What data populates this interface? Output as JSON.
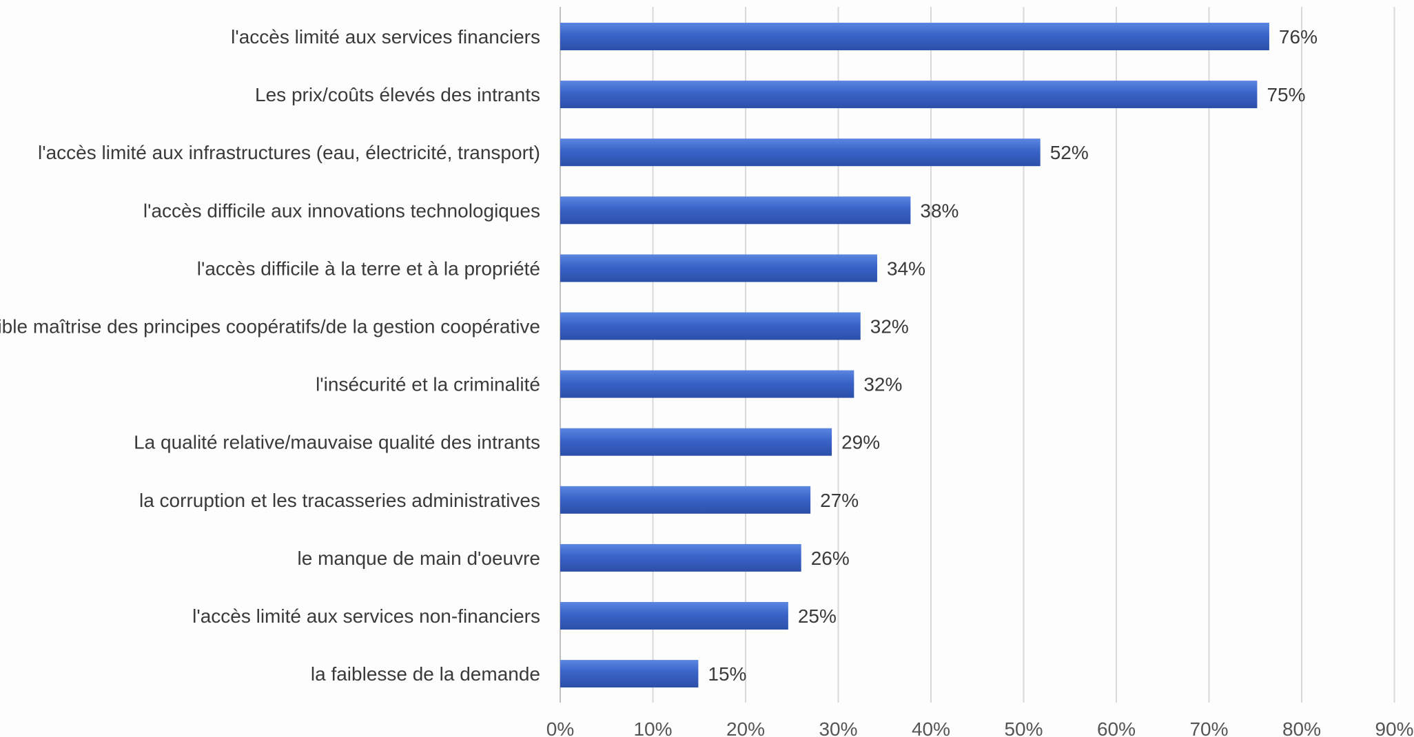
{
  "chart_data": {
    "type": "bar",
    "orientation": "horizontal",
    "categories": [
      "l'accès limité aux services financiers",
      "Les prix/coûts élevés des intrants",
      "l'accès limité aux infrastructures (eau, électricité, transport)",
      "l'accès difficile aux innovations technologiques",
      "l'accès difficile à la terre et à la propriété",
      "Faible maîtrise des principes coopératifs/de la gestion coopérative",
      "l'insécurité et la criminalité",
      "La qualité relative/mauvaise qualité des intrants",
      "la corruption et les tracasseries administratives",
      "le manque de main d'oeuvre",
      "l'accès limité aux services non-financiers",
      "la faiblesse de la demande"
    ],
    "values": [
      76.5,
      75.2,
      51.8,
      37.8,
      34.2,
      32.4,
      31.7,
      29.3,
      27.0,
      26.0,
      24.6,
      14.9
    ],
    "value_labels": [
      "76%",
      "75%",
      "52%",
      "38%",
      "34%",
      "32%",
      "32%",
      "29%",
      "27%",
      "26%",
      "25%",
      "15%"
    ],
    "x_ticks": [
      0,
      10,
      20,
      30,
      40,
      50,
      60,
      70,
      80,
      90
    ],
    "x_tick_labels": [
      "0%",
      "10%",
      "20%",
      "30%",
      "40%",
      "50%",
      "60%",
      "70%",
      "80%",
      "90%"
    ],
    "xlim": [
      0,
      90
    ],
    "title": "",
    "xlabel": "",
    "ylabel": "",
    "grid": "vertical",
    "legend": "none",
    "bar_color": "#3a63c8"
  }
}
